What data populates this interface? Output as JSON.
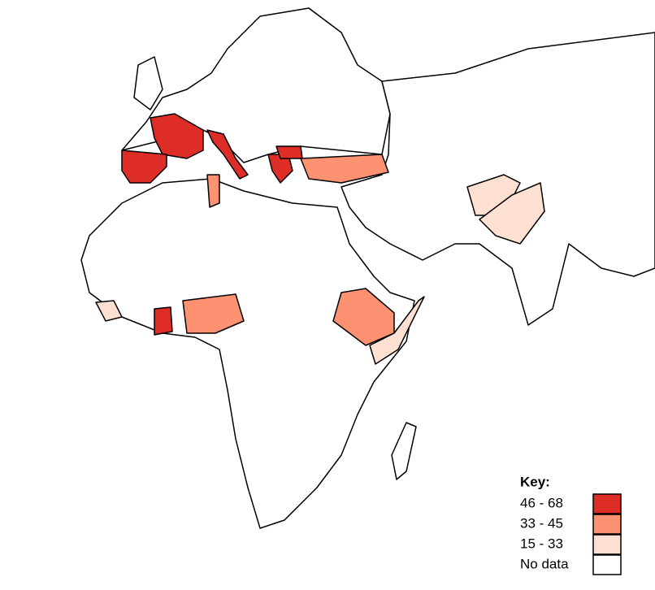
{
  "legend": {
    "title": "Key:",
    "items": [
      {
        "label": "46 - 68",
        "color": "#de2d26"
      },
      {
        "label": "33 - 45",
        "color": "#fc9272"
      },
      {
        "label": "15 - 33",
        "color": "#fee0d2"
      },
      {
        "label": "No data",
        "color": "#ffffff"
      }
    ]
  }
}
